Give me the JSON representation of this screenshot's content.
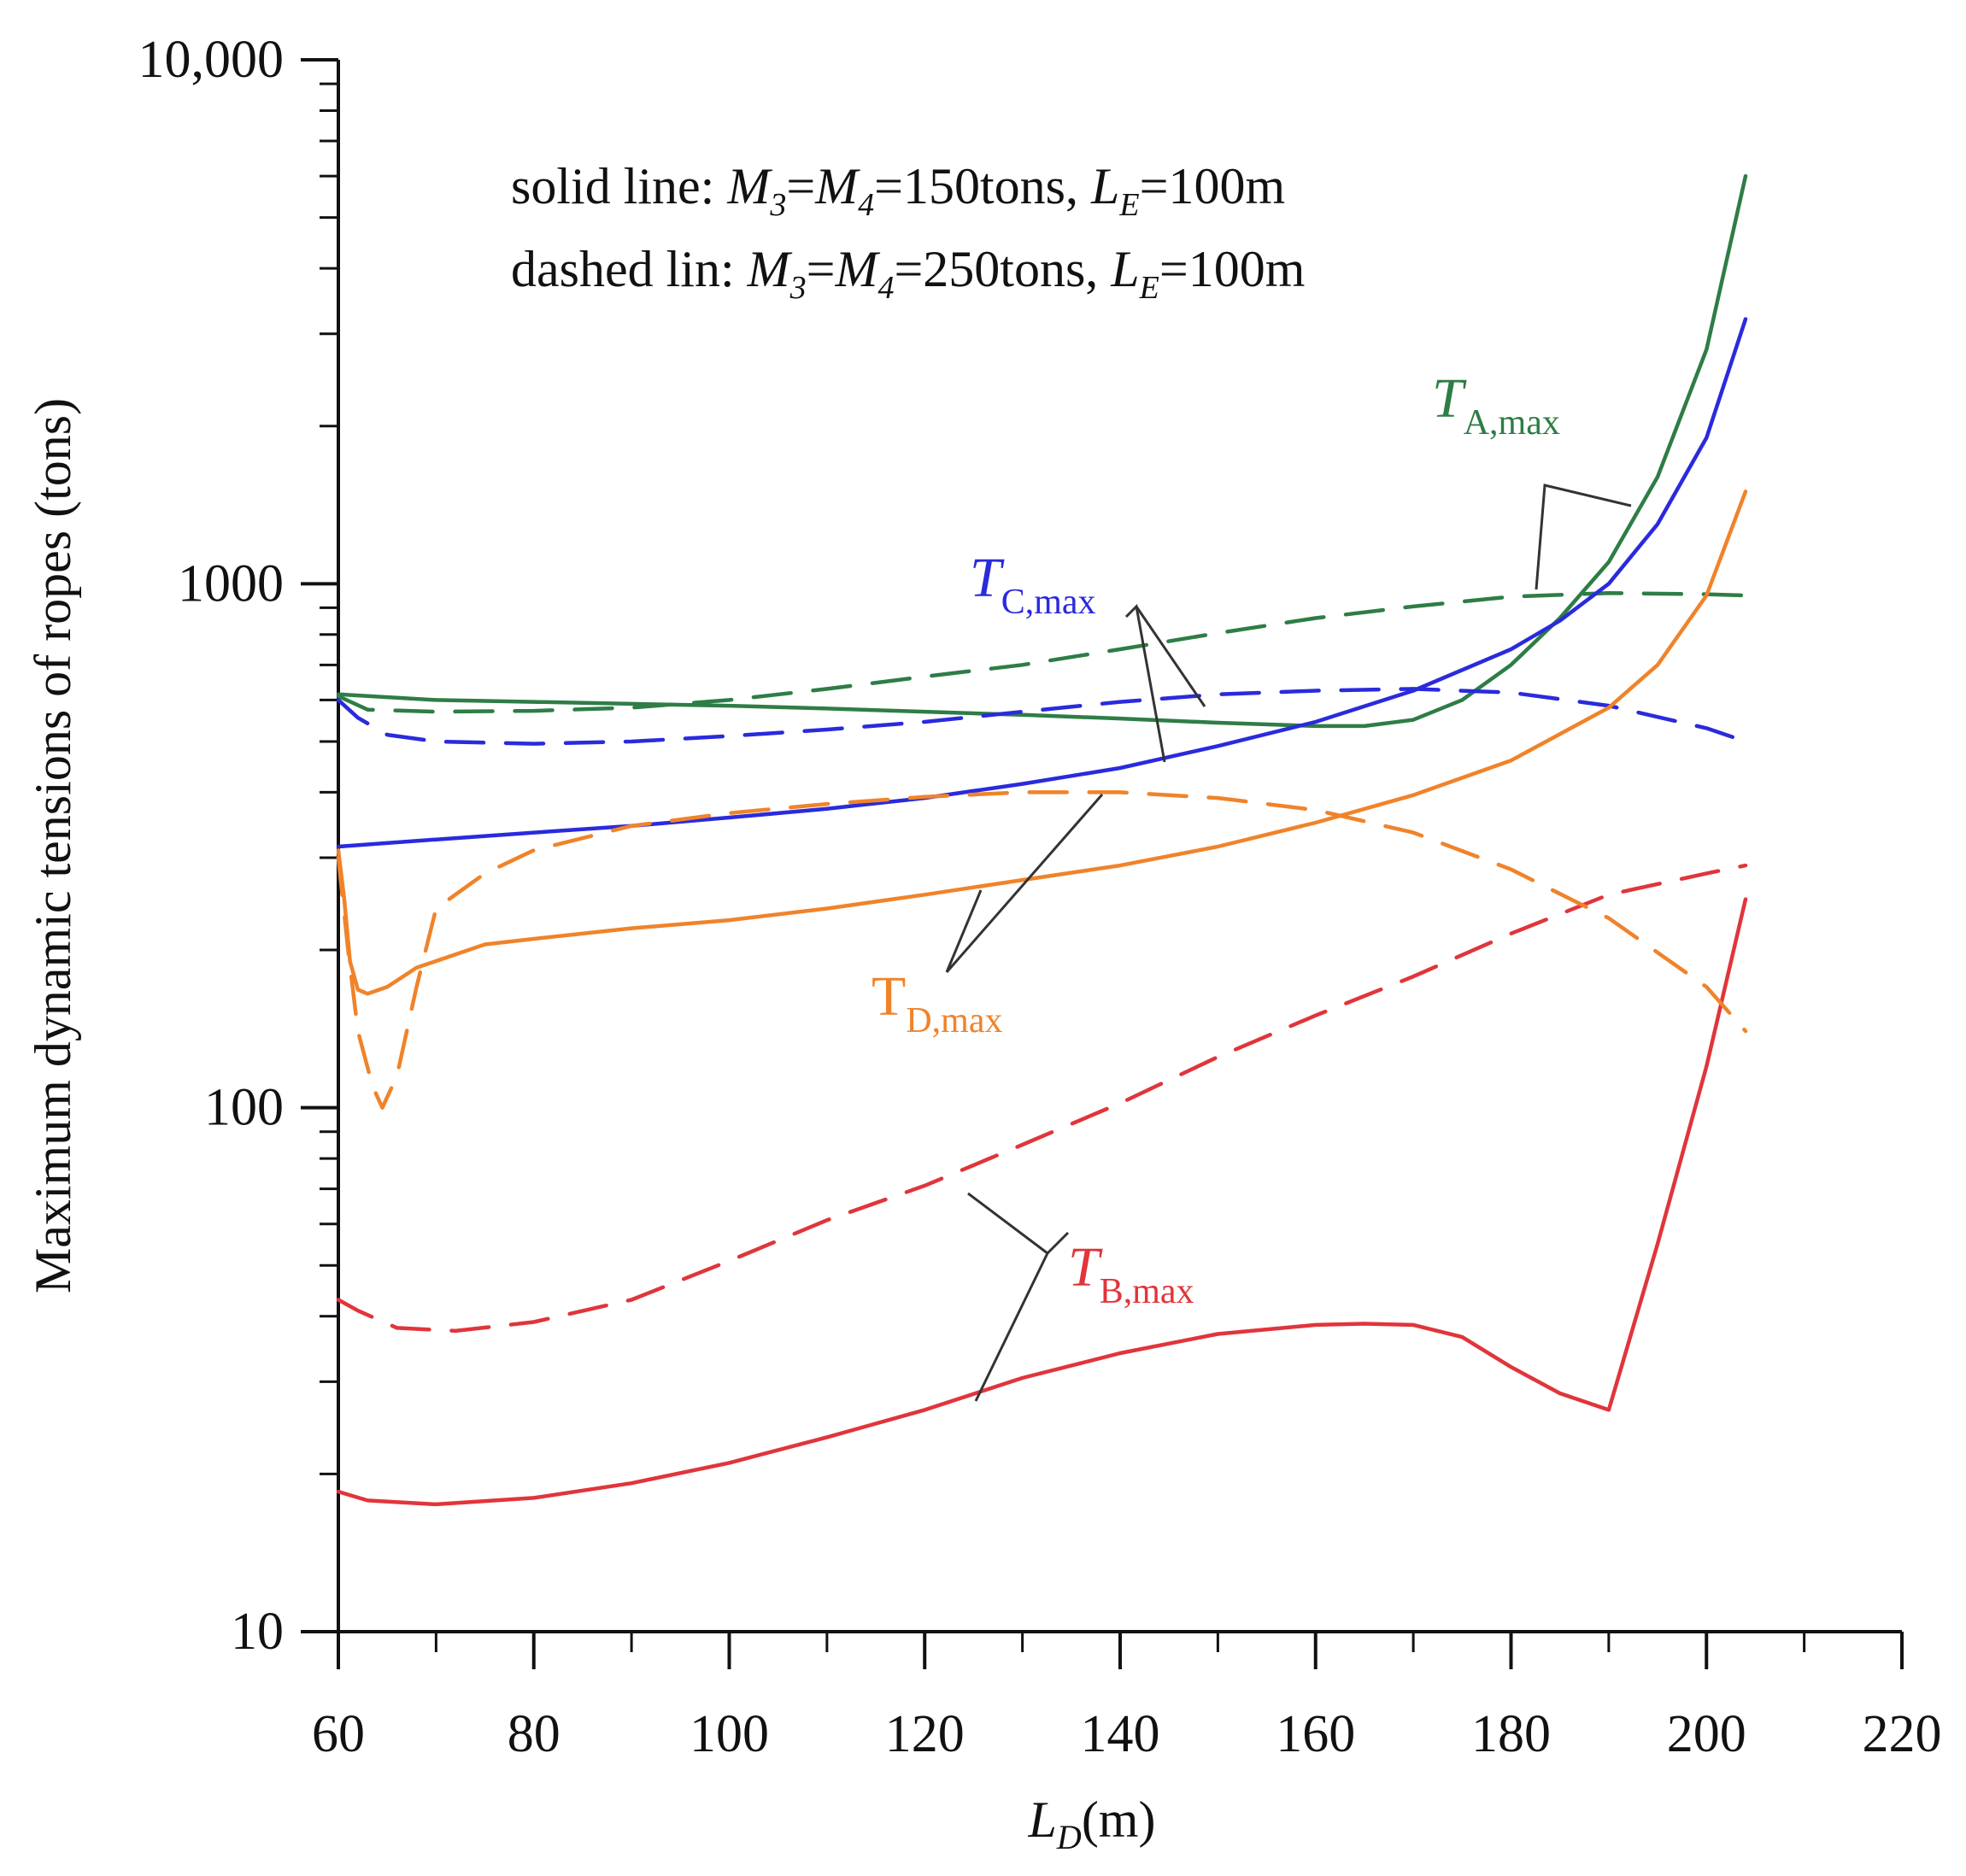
{
  "chart_data": {
    "type": "line",
    "x_axis": {
      "min": 60,
      "max": 220,
      "ticks": [
        60,
        80,
        100,
        120,
        140,
        160,
        180,
        200,
        220
      ],
      "tick_labels": [
        "60",
        "80",
        "100",
        "120",
        "140",
        "160",
        "180",
        "200",
        "220"
      ],
      "label_main": "L",
      "label_sub": "D",
      "label_unit": "(m)"
    },
    "y_axis": {
      "scale": "log",
      "min": 10,
      "max": 10000,
      "ticks": [
        10,
        100,
        1000,
        10000
      ],
      "tick_labels": [
        "10",
        "100",
        "1000",
        "10,000"
      ],
      "label": "Maximum dynamic tensions of ropes (tons)"
    },
    "annotations": {
      "solid": {
        "prefix": "solid line: ",
        "m3": "M",
        "m3_sub": "3",
        "eq1": "=",
        "m4": "M",
        "m4_sub": "4",
        "value": "=150tons, ",
        "le": "L",
        "le_sub": "E",
        "le_value": "=100m"
      },
      "dashed": {
        "prefix": "dashed lin: ",
        "m3": "M",
        "m3_sub": "3",
        "eq1": "=",
        "m4": "M",
        "m4_sub": "4",
        "value": "=250tons, ",
        "le": "L",
        "le_sub": "E",
        "le_value": "=100m"
      }
    },
    "series_labels": {
      "A": {
        "main": "T",
        "sub": "A,max",
        "color": "#2e7d46"
      },
      "B": {
        "main": "T",
        "sub": "B,max",
        "color": "#e0353b"
      },
      "C": {
        "main": "T",
        "sub": "C,max",
        "color": "#2a2add"
      },
      "D": {
        "main": "T",
        "sub": "D,max",
        "color": "#f0832a"
      }
    },
    "series": [
      {
        "key": "A",
        "style": "solid",
        "color": "#2e7d46",
        "points": [
          [
            60,
            615
          ],
          [
            70,
            600
          ],
          [
            80,
            595
          ],
          [
            90,
            590
          ],
          [
            100,
            585
          ],
          [
            110,
            578
          ],
          [
            120,
            570
          ],
          [
            130,
            562
          ],
          [
            140,
            553
          ],
          [
            150,
            543
          ],
          [
            160,
            535
          ],
          [
            165,
            535
          ],
          [
            170,
            550
          ],
          [
            175,
            600
          ],
          [
            180,
            700
          ],
          [
            185,
            860
          ],
          [
            190,
            1100
          ],
          [
            195,
            1600
          ],
          [
            200,
            2800
          ],
          [
            204,
            6000
          ]
        ]
      },
      {
        "key": "A",
        "style": "dashed",
        "color": "#2e7d46",
        "points": [
          [
            60,
            610
          ],
          [
            63,
            575
          ],
          [
            70,
            570
          ],
          [
            80,
            572
          ],
          [
            90,
            580
          ],
          [
            100,
            600
          ],
          [
            110,
            630
          ],
          [
            120,
            665
          ],
          [
            130,
            700
          ],
          [
            140,
            750
          ],
          [
            150,
            805
          ],
          [
            160,
            860
          ],
          [
            170,
            905
          ],
          [
            180,
            945
          ],
          [
            190,
            960
          ],
          [
            200,
            955
          ],
          [
            204,
            950
          ]
        ]
      },
      {
        "key": "B",
        "style": "solid",
        "color": "#e0353b",
        "points": [
          [
            60,
            18.5
          ],
          [
            63,
            17.8
          ],
          [
            70,
            17.5
          ],
          [
            80,
            18
          ],
          [
            90,
            19.2
          ],
          [
            100,
            21
          ],
          [
            110,
            23.5
          ],
          [
            120,
            26.5
          ],
          [
            130,
            30.5
          ],
          [
            140,
            34
          ],
          [
            150,
            37
          ],
          [
            160,
            38.5
          ],
          [
            165,
            38.7
          ],
          [
            170,
            38.5
          ],
          [
            175,
            36.5
          ],
          [
            180,
            32
          ],
          [
            185,
            28.5
          ],
          [
            190,
            26.5
          ],
          [
            195,
            55
          ],
          [
            200,
            120
          ],
          [
            204,
            250
          ]
        ]
      },
      {
        "key": "B",
        "style": "dashed",
        "color": "#e0353b",
        "points": [
          [
            60,
            43
          ],
          [
            62,
            41
          ],
          [
            66,
            38
          ],
          [
            72,
            37.5
          ],
          [
            80,
            39
          ],
          [
            90,
            43
          ],
          [
            100,
            51
          ],
          [
            110,
            61
          ],
          [
            120,
            71
          ],
          [
            130,
            85
          ],
          [
            140,
            102
          ],
          [
            150,
            125
          ],
          [
            160,
            150
          ],
          [
            170,
            178
          ],
          [
            180,
            215
          ],
          [
            190,
            255
          ],
          [
            200,
            280
          ],
          [
            204,
            290
          ]
        ]
      },
      {
        "key": "C",
        "style": "solid",
        "color": "#2a2add",
        "points": [
          [
            60,
            315
          ],
          [
            70,
            325
          ],
          [
            80,
            335
          ],
          [
            90,
            345
          ],
          [
            100,
            358
          ],
          [
            110,
            372
          ],
          [
            120,
            390
          ],
          [
            130,
            415
          ],
          [
            140,
            445
          ],
          [
            150,
            490
          ],
          [
            160,
            545
          ],
          [
            170,
            625
          ],
          [
            180,
            750
          ],
          [
            185,
            850
          ],
          [
            190,
            1000
          ],
          [
            195,
            1300
          ],
          [
            200,
            1900
          ],
          [
            204,
            3200
          ]
        ]
      },
      {
        "key": "C",
        "style": "dashed",
        "color": "#2a2add",
        "points": [
          [
            60,
            600
          ],
          [
            62,
            555
          ],
          [
            65,
            515
          ],
          [
            70,
            500
          ],
          [
            80,
            495
          ],
          [
            90,
            500
          ],
          [
            100,
            512
          ],
          [
            110,
            527
          ],
          [
            120,
            545
          ],
          [
            130,
            570
          ],
          [
            140,
            595
          ],
          [
            150,
            615
          ],
          [
            160,
            625
          ],
          [
            170,
            630
          ],
          [
            180,
            620
          ],
          [
            190,
            585
          ],
          [
            200,
            530
          ],
          [
            204,
            500
          ]
        ]
      },
      {
        "key": "D",
        "style": "solid",
        "color": "#f0832a",
        "points": [
          [
            60,
            310
          ],
          [
            60.6,
            250
          ],
          [
            61.2,
            190
          ],
          [
            62,
            168
          ],
          [
            63,
            165
          ],
          [
            65,
            170
          ],
          [
            68,
            185
          ],
          [
            75,
            205
          ],
          [
            80,
            210
          ],
          [
            90,
            220
          ],
          [
            100,
            228
          ],
          [
            110,
            240
          ],
          [
            120,
            255
          ],
          [
            130,
            272
          ],
          [
            140,
            290
          ],
          [
            150,
            315
          ],
          [
            160,
            350
          ],
          [
            170,
            395
          ],
          [
            180,
            460
          ],
          [
            190,
            580
          ],
          [
            195,
            700
          ],
          [
            200,
            950
          ],
          [
            204,
            1500
          ]
        ]
      },
      {
        "key": "D",
        "style": "dashed",
        "color": "#f0832a",
        "points": [
          [
            60,
            300
          ],
          [
            61,
            200
          ],
          [
            62,
            140
          ],
          [
            63.5,
            110
          ],
          [
            64.5,
            100
          ],
          [
            66,
            115
          ],
          [
            68,
            170
          ],
          [
            70,
            240
          ],
          [
            75,
            280
          ],
          [
            80,
            310
          ],
          [
            90,
            345
          ],
          [
            100,
            365
          ],
          [
            110,
            380
          ],
          [
            120,
            392
          ],
          [
            130,
            400
          ],
          [
            140,
            400
          ],
          [
            150,
            390
          ],
          [
            160,
            370
          ],
          [
            170,
            335
          ],
          [
            180,
            285
          ],
          [
            190,
            230
          ],
          [
            200,
            170
          ],
          [
            204,
            140
          ]
        ]
      }
    ]
  }
}
